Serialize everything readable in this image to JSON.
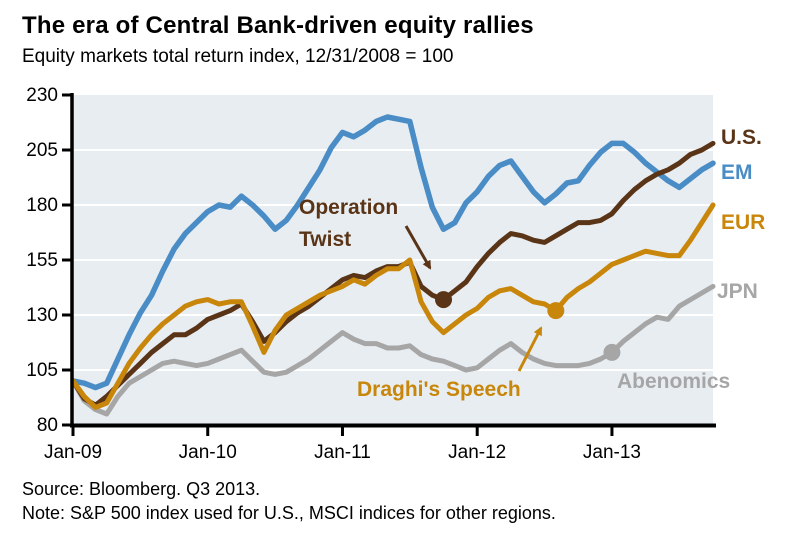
{
  "title": "The era of Central Bank-driven equity rallies",
  "subtitle": "Equity markets total return index, 12/31/2008 = 100",
  "footer": {
    "source": "Source: Bloomberg. Q3 2013.",
    "note": "Note: S&P 500 index used for U.S., MSCI indices for other regions."
  },
  "colors": {
    "us": "#5a3417",
    "em": "#4a8cc5",
    "eur": "#c8860b",
    "jpn": "#a6a6a6",
    "plot_bg": "#e8edf2",
    "grid": "#ffffff",
    "axis": "#000000"
  },
  "chart_data": {
    "type": "line",
    "x_start": "Jan-2009",
    "x_interval": "monthly",
    "x_tick_labels": [
      "Jan-09",
      "Jan-10",
      "Jan-11",
      "Jan-12",
      "Jan-13"
    ],
    "x_tick_month_index": [
      0,
      12,
      24,
      36,
      48
    ],
    "ylim": [
      80,
      230
    ],
    "y_ticks": [
      230,
      205,
      180,
      155,
      130,
      105,
      80
    ],
    "grid": true,
    "legend_position": "right",
    "series": [
      {
        "name": "U.S.",
        "color_key": "us",
        "values": [
          100,
          92,
          89,
          93,
          98,
          103,
          108,
          113,
          117,
          121,
          121,
          124,
          128,
          130,
          132,
          135,
          127,
          118,
          122,
          127,
          131,
          134,
          138,
          142,
          146,
          148,
          147,
          150,
          152,
          152,
          154,
          143,
          139,
          137,
          141,
          145,
          152,
          158,
          163,
          167,
          166,
          164,
          163,
          166,
          169,
          172,
          172,
          173,
          176,
          182,
          187,
          191,
          194,
          196,
          199,
          203,
          205,
          208
        ]
      },
      {
        "name": "EM",
        "color_key": "em",
        "values": [
          100,
          99,
          97,
          99,
          110,
          121,
          131,
          139,
          150,
          160,
          167,
          172,
          177,
          180,
          179,
          184,
          180,
          175,
          169,
          173,
          180,
          188,
          196,
          206,
          213,
          211,
          214,
          218,
          220,
          219,
          218,
          197,
          179,
          169,
          172,
          181,
          186,
          193,
          198,
          200,
          193,
          186,
          181,
          185,
          190,
          191,
          198,
          204,
          208,
          208,
          204,
          199,
          195,
          191,
          188,
          192,
          196,
          199
        ]
      },
      {
        "name": "EUR",
        "color_key": "eur",
        "values": [
          100,
          93,
          88,
          90,
          99,
          108,
          115,
          121,
          126,
          130,
          134,
          136,
          137,
          135,
          136,
          136,
          125,
          113,
          123,
          130,
          133,
          136,
          139,
          141,
          143,
          146,
          144,
          148,
          151,
          151,
          155,
          136,
          127,
          122,
          126,
          130,
          133,
          138,
          141,
          142,
          139,
          136,
          135,
          132,
          138,
          142,
          145,
          149,
          153,
          155,
          157,
          159,
          158,
          157,
          157,
          164,
          172,
          180
        ]
      },
      {
        "name": "JPN",
        "color_key": "jpn",
        "values": [
          100,
          91,
          87,
          85,
          93,
          99,
          102,
          105,
          108,
          109,
          108,
          107,
          108,
          110,
          112,
          114,
          109,
          104,
          103,
          104,
          107,
          110,
          114,
          118,
          122,
          119,
          117,
          117,
          115,
          115,
          116,
          112,
          110,
          109,
          107,
          105,
          106,
          110,
          114,
          117,
          113,
          110,
          108,
          107,
          107,
          107,
          108,
          110,
          113,
          118,
          122,
          126,
          129,
          128,
          134,
          137,
          140,
          143
        ]
      }
    ],
    "annotations": [
      {
        "label": "Operation\nTwist",
        "series": "U.S.",
        "color_key": "us",
        "month_index": 33,
        "value": 137
      },
      {
        "label": "Draghi's Speech",
        "series": "EUR",
        "color_key": "eur",
        "month_index": 43,
        "value": 132
      },
      {
        "label": "Abenomics",
        "series": "JPN",
        "color_key": "jpn",
        "month_index": 48,
        "value": 113
      }
    ]
  }
}
